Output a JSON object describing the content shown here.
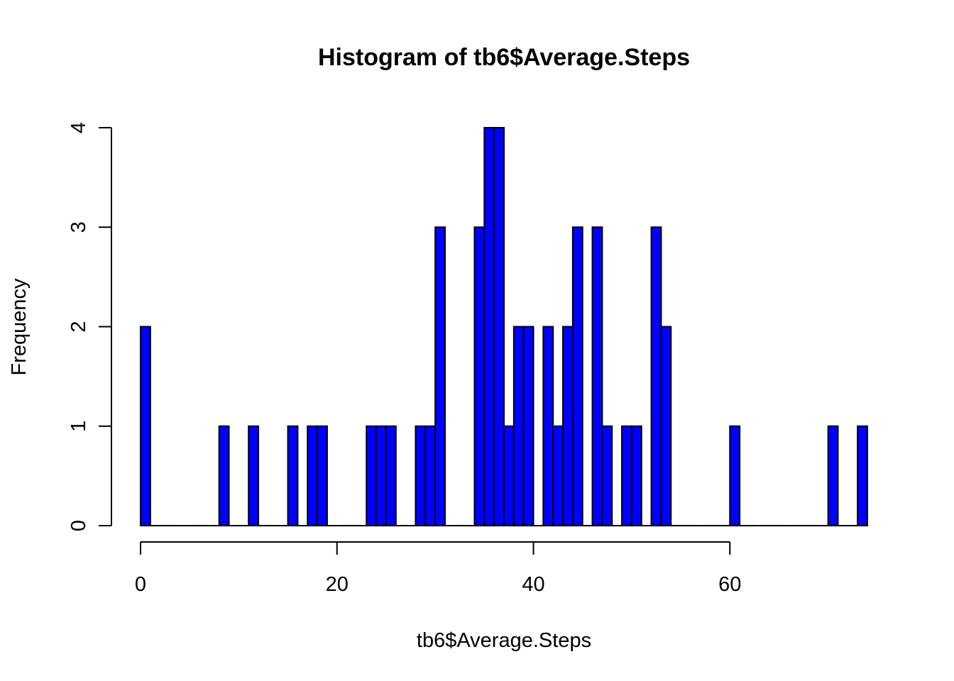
{
  "chart_data": {
    "type": "bar",
    "title": "Histogram of tb6$Average.Steps",
    "xlabel": "tb6$Average.Steps",
    "ylabel": "Frequency",
    "xlim": [
      0,
      74
    ],
    "ylim": [
      0,
      4
    ],
    "x_ticks": [
      0,
      20,
      40,
      60
    ],
    "y_ticks": [
      0,
      1,
      2,
      3,
      4
    ],
    "bin_width": 1,
    "bar_color": "#0000ff",
    "bin_starts": [
      0,
      1,
      2,
      3,
      4,
      5,
      6,
      7,
      8,
      9,
      10,
      11,
      12,
      13,
      14,
      15,
      16,
      17,
      18,
      19,
      20,
      21,
      22,
      23,
      24,
      25,
      26,
      27,
      28,
      29,
      30,
      31,
      32,
      33,
      34,
      35,
      36,
      37,
      38,
      39,
      40,
      41,
      42,
      43,
      44,
      45,
      46,
      47,
      48,
      49,
      50,
      51,
      52,
      53,
      54,
      55,
      56,
      57,
      58,
      59,
      60,
      61,
      62,
      63,
      64,
      65,
      66,
      67,
      68,
      69,
      70,
      71,
      72,
      73
    ],
    "counts": [
      2,
      0,
      0,
      0,
      0,
      0,
      0,
      0,
      1,
      0,
      0,
      1,
      0,
      0,
      0,
      1,
      0,
      1,
      1,
      0,
      0,
      0,
      0,
      1,
      1,
      1,
      0,
      0,
      1,
      1,
      3,
      0,
      0,
      0,
      3,
      4,
      4,
      1,
      2,
      2,
      0,
      2,
      1,
      2,
      3,
      0,
      3,
      1,
      0,
      1,
      1,
      0,
      3,
      2,
      0,
      0,
      0,
      0,
      0,
      0,
      1,
      0,
      0,
      0,
      0,
      0,
      0,
      0,
      0,
      0,
      1,
      0,
      0,
      1
    ]
  }
}
